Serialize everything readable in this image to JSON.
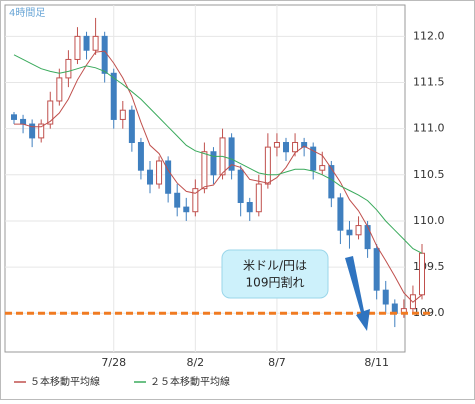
{
  "chart_data": {
    "type": "candlestick",
    "title": "4時間足",
    "categories": [
      null,
      null,
      null,
      null,
      null,
      null,
      null,
      null,
      null,
      null,
      null,
      "7/28",
      null,
      null,
      null,
      null,
      null,
      null,
      null,
      null,
      "8/2",
      null,
      null,
      null,
      null,
      null,
      null,
      null,
      null,
      "8/7",
      null,
      null,
      null,
      null,
      null,
      null,
      null,
      null,
      null,
      null,
      "8/11",
      null,
      null,
      null,
      null,
      null
    ],
    "open": [
      111.15,
      111.1,
      111.05,
      110.9,
      111.05,
      111.3,
      111.55,
      111.75,
      112.0,
      111.85,
      112.0,
      111.6,
      111.1,
      111.2,
      110.85,
      110.55,
      110.4,
      110.65,
      110.3,
      110.15,
      110.1,
      110.35,
      110.75,
      110.5,
      110.9,
      110.55,
      110.2,
      110.1,
      110.4,
      110.8,
      110.85,
      110.75,
      110.85,
      110.8,
      110.55,
      110.6,
      110.25,
      109.9,
      109.85,
      109.95,
      109.7,
      109.25,
      109.1,
      109.0,
      109.05,
      109.2
    ],
    "high": [
      111.18,
      111.15,
      111.1,
      111.1,
      111.4,
      111.65,
      111.85,
      112.1,
      112.05,
      112.2,
      112.05,
      111.65,
      111.3,
      111.25,
      110.9,
      110.65,
      110.7,
      110.7,
      110.4,
      110.25,
      110.45,
      110.85,
      110.8,
      111.0,
      110.95,
      110.6,
      110.25,
      110.5,
      110.95,
      110.95,
      110.9,
      110.95,
      110.9,
      110.85,
      110.75,
      110.65,
      110.3,
      110.0,
      110.05,
      110.0,
      109.75,
      109.35,
      109.15,
      109.15,
      109.3,
      109.75
    ],
    "low": [
      111.05,
      110.95,
      110.8,
      110.85,
      111.0,
      111.25,
      111.45,
      111.7,
      111.75,
      111.8,
      111.5,
      111.0,
      111.0,
      110.75,
      110.45,
      110.3,
      110.35,
      110.2,
      110.05,
      110.0,
      110.05,
      110.3,
      110.4,
      110.45,
      110.45,
      110.05,
      110.0,
      110.05,
      110.35,
      110.7,
      110.65,
      110.7,
      110.7,
      110.45,
      110.5,
      110.15,
      109.75,
      109.7,
      109.8,
      109.6,
      109.15,
      109.0,
      108.85,
      108.95,
      109.0,
      109.15
    ],
    "close": [
      111.1,
      111.05,
      110.9,
      111.05,
      111.3,
      111.55,
      111.75,
      112.0,
      111.85,
      112.0,
      111.6,
      111.1,
      111.2,
      110.85,
      110.55,
      110.4,
      110.65,
      110.3,
      110.15,
      110.1,
      110.35,
      110.75,
      110.5,
      110.9,
      110.55,
      110.2,
      110.1,
      110.4,
      110.8,
      110.85,
      110.75,
      110.85,
      110.8,
      110.55,
      110.6,
      110.25,
      109.9,
      109.85,
      109.95,
      109.7,
      109.25,
      109.1,
      109.0,
      109.05,
      109.2,
      109.65
    ],
    "up_color": "#c0504d",
    "down_color": "#3f7fbf",
    "series": [
      {
        "name": "５本移動平均線",
        "color": "#c0504d",
        "values": [
          111.05,
          111.05,
          111.02,
          111.02,
          111.08,
          111.17,
          111.32,
          111.53,
          111.69,
          111.83,
          111.84,
          111.71,
          111.55,
          111.35,
          111.07,
          110.82,
          110.73,
          110.55,
          110.41,
          110.32,
          110.3,
          110.37,
          110.39,
          110.52,
          110.61,
          110.58,
          110.45,
          110.43,
          110.41,
          110.47,
          110.58,
          110.74,
          110.81,
          110.76,
          110.71,
          110.57,
          110.42,
          110.23,
          110.11,
          109.94,
          109.73,
          109.57,
          109.4,
          109.22,
          109.12,
          109.2
        ]
      },
      {
        "name": "２５本移動平均線",
        "color": "#3aaa5c",
        "values": [
          111.8,
          111.75,
          111.7,
          111.65,
          111.62,
          111.6,
          111.62,
          111.65,
          111.68,
          111.66,
          111.62,
          111.55,
          111.48,
          111.4,
          111.32,
          111.22,
          111.12,
          111.02,
          110.92,
          110.82,
          110.76,
          110.73,
          110.7,
          110.7,
          110.67,
          110.62,
          110.57,
          110.52,
          110.5,
          110.5,
          110.53,
          110.56,
          110.56,
          110.54,
          110.5,
          110.45,
          110.38,
          110.33,
          110.28,
          110.22,
          110.12,
          110.0,
          109.9,
          109.8,
          109.7,
          109.65
        ]
      }
    ],
    "ylim": [
      108.58,
      112.34
    ],
    "yticks": [
      {
        "value": 109,
        "label": "109.0"
      },
      109.5,
      {
        "value": 110,
        "label": "110.0"
      },
      110.5,
      {
        "value": 111,
        "label": "111.0"
      },
      111.5,
      {
        "value": 112,
        "label": "112.0"
      }
    ],
    "grid": true,
    "reference_line": {
      "value": 109.0,
      "color": "#f07b22"
    },
    "annotation": [
      "米ドル/円は",
      "109円割れ"
    ]
  }
}
